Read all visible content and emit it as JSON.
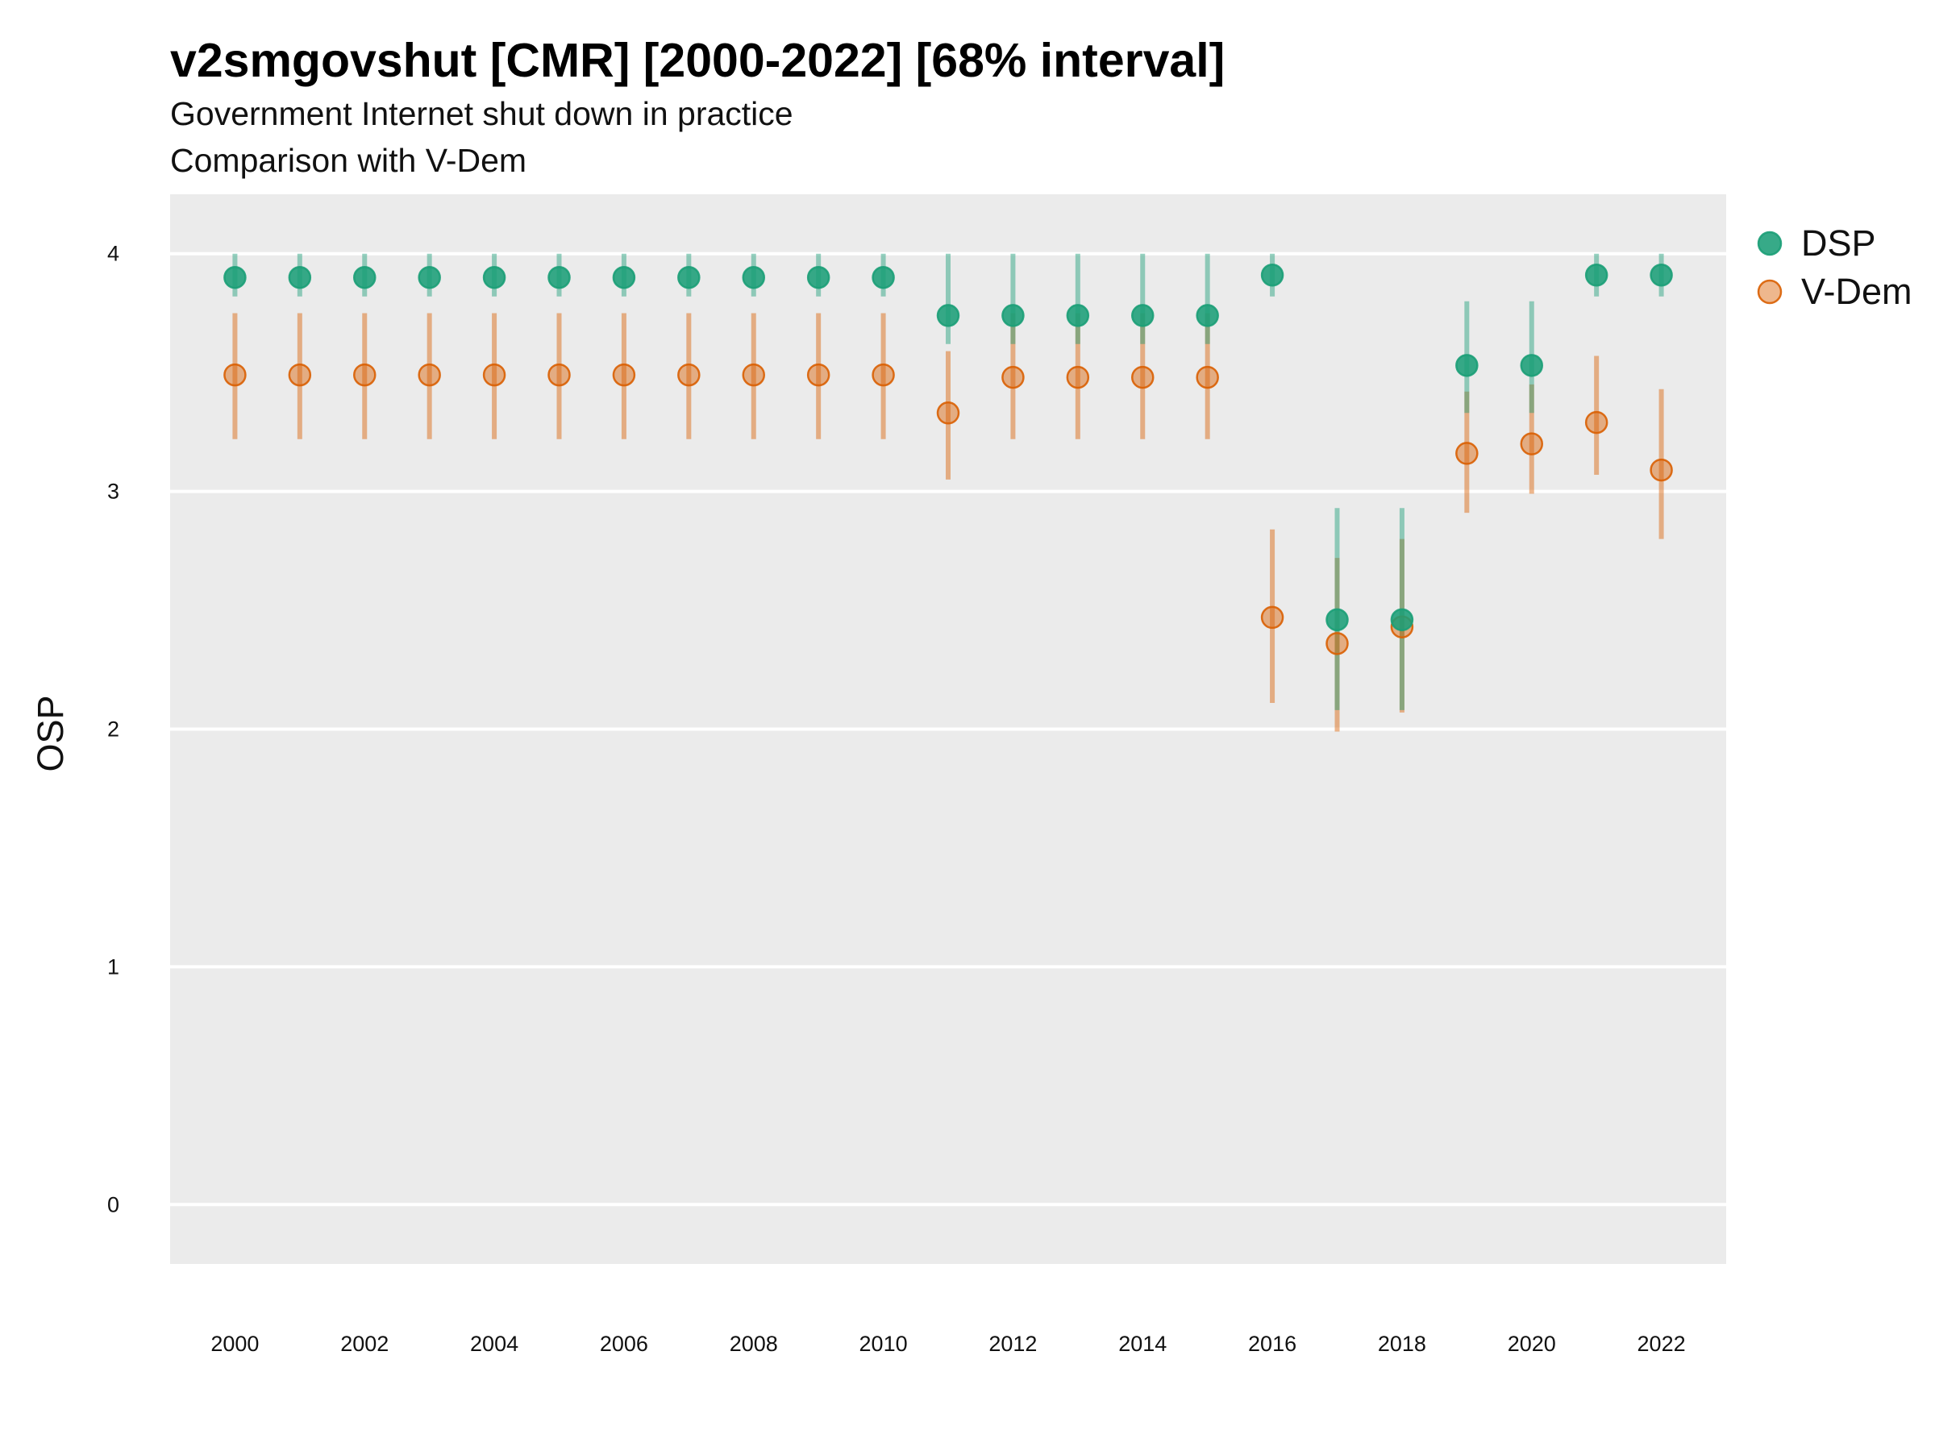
{
  "chart_data": {
    "type": "scatter",
    "title": "v2smgovshut [CMR] [2000-2022] [68% interval]",
    "subtitle_lines": [
      "Government Internet shut down in practice",
      "Comparison with V-Dem"
    ],
    "xlabel": "",
    "ylabel": "OSP",
    "xlim": [
      1999,
      2023
    ],
    "ylim": [
      -0.25,
      4.25
    ],
    "x_ticks": [
      2000,
      2002,
      2004,
      2006,
      2008,
      2010,
      2012,
      2014,
      2016,
      2018,
      2020,
      2022
    ],
    "y_ticks": [
      0,
      1,
      2,
      3,
      4
    ],
    "grid": true,
    "legend_position": "right",
    "series": [
      {
        "name": "DSP",
        "color": "#1b9e77",
        "points": [
          {
            "x": 2000,
            "y": 3.9,
            "low": 3.82,
            "high": 4.0
          },
          {
            "x": 2001,
            "y": 3.9,
            "low": 3.82,
            "high": 4.0
          },
          {
            "x": 2002,
            "y": 3.9,
            "low": 3.82,
            "high": 4.0
          },
          {
            "x": 2003,
            "y": 3.9,
            "low": 3.82,
            "high": 4.0
          },
          {
            "x": 2004,
            "y": 3.9,
            "low": 3.82,
            "high": 4.0
          },
          {
            "x": 2005,
            "y": 3.9,
            "low": 3.82,
            "high": 4.0
          },
          {
            "x": 2006,
            "y": 3.9,
            "low": 3.82,
            "high": 4.0
          },
          {
            "x": 2007,
            "y": 3.9,
            "low": 3.82,
            "high": 4.0
          },
          {
            "x": 2008,
            "y": 3.9,
            "low": 3.82,
            "high": 4.0
          },
          {
            "x": 2009,
            "y": 3.9,
            "low": 3.82,
            "high": 4.0
          },
          {
            "x": 2010,
            "y": 3.9,
            "low": 3.82,
            "high": 4.0
          },
          {
            "x": 2011,
            "y": 3.74,
            "low": 3.62,
            "high": 4.0
          },
          {
            "x": 2012,
            "y": 3.74,
            "low": 3.62,
            "high": 4.0
          },
          {
            "x": 2013,
            "y": 3.74,
            "low": 3.62,
            "high": 4.0
          },
          {
            "x": 2014,
            "y": 3.74,
            "low": 3.62,
            "high": 4.0
          },
          {
            "x": 2015,
            "y": 3.74,
            "low": 3.62,
            "high": 4.0
          },
          {
            "x": 2016,
            "y": 3.91,
            "low": 3.82,
            "high": 4.0
          },
          {
            "x": 2017,
            "y": 2.46,
            "low": 2.08,
            "high": 2.93
          },
          {
            "x": 2018,
            "y": 2.46,
            "low": 2.08,
            "high": 2.93
          },
          {
            "x": 2019,
            "y": 3.53,
            "low": 3.33,
            "high": 3.8
          },
          {
            "x": 2020,
            "y": 3.53,
            "low": 3.33,
            "high": 3.8
          },
          {
            "x": 2021,
            "y": 3.91,
            "low": 3.82,
            "high": 4.0
          },
          {
            "x": 2022,
            "y": 3.91,
            "low": 3.82,
            "high": 4.0
          }
        ]
      },
      {
        "name": "V-Dem",
        "color": "#d95f02",
        "points": [
          {
            "x": 2000,
            "y": 3.49,
            "low": 3.22,
            "high": 3.75
          },
          {
            "x": 2001,
            "y": 3.49,
            "low": 3.22,
            "high": 3.75
          },
          {
            "x": 2002,
            "y": 3.49,
            "low": 3.22,
            "high": 3.75
          },
          {
            "x": 2003,
            "y": 3.49,
            "low": 3.22,
            "high": 3.75
          },
          {
            "x": 2004,
            "y": 3.49,
            "low": 3.22,
            "high": 3.75
          },
          {
            "x": 2005,
            "y": 3.49,
            "low": 3.22,
            "high": 3.75
          },
          {
            "x": 2006,
            "y": 3.49,
            "low": 3.22,
            "high": 3.75
          },
          {
            "x": 2007,
            "y": 3.49,
            "low": 3.22,
            "high": 3.75
          },
          {
            "x": 2008,
            "y": 3.49,
            "low": 3.22,
            "high": 3.75
          },
          {
            "x": 2009,
            "y": 3.49,
            "low": 3.22,
            "high": 3.75
          },
          {
            "x": 2010,
            "y": 3.49,
            "low": 3.22,
            "high": 3.75
          },
          {
            "x": 2011,
            "y": 3.33,
            "low": 3.05,
            "high": 3.59
          },
          {
            "x": 2012,
            "y": 3.48,
            "low": 3.22,
            "high": 3.75
          },
          {
            "x": 2013,
            "y": 3.48,
            "low": 3.22,
            "high": 3.75
          },
          {
            "x": 2014,
            "y": 3.48,
            "low": 3.22,
            "high": 3.75
          },
          {
            "x": 2015,
            "y": 3.48,
            "low": 3.22,
            "high": 3.75
          },
          {
            "x": 2016,
            "y": 2.47,
            "low": 2.11,
            "high": 2.84
          },
          {
            "x": 2017,
            "y": 2.36,
            "low": 1.99,
            "high": 2.72
          },
          {
            "x": 2018,
            "y": 2.43,
            "low": 2.07,
            "high": 2.8
          },
          {
            "x": 2019,
            "y": 3.16,
            "low": 2.91,
            "high": 3.42
          },
          {
            "x": 2020,
            "y": 3.2,
            "low": 2.99,
            "high": 3.45
          },
          {
            "x": 2021,
            "y": 3.29,
            "low": 3.07,
            "high": 3.57
          },
          {
            "x": 2022,
            "y": 3.09,
            "low": 2.8,
            "high": 3.43
          }
        ]
      }
    ]
  }
}
